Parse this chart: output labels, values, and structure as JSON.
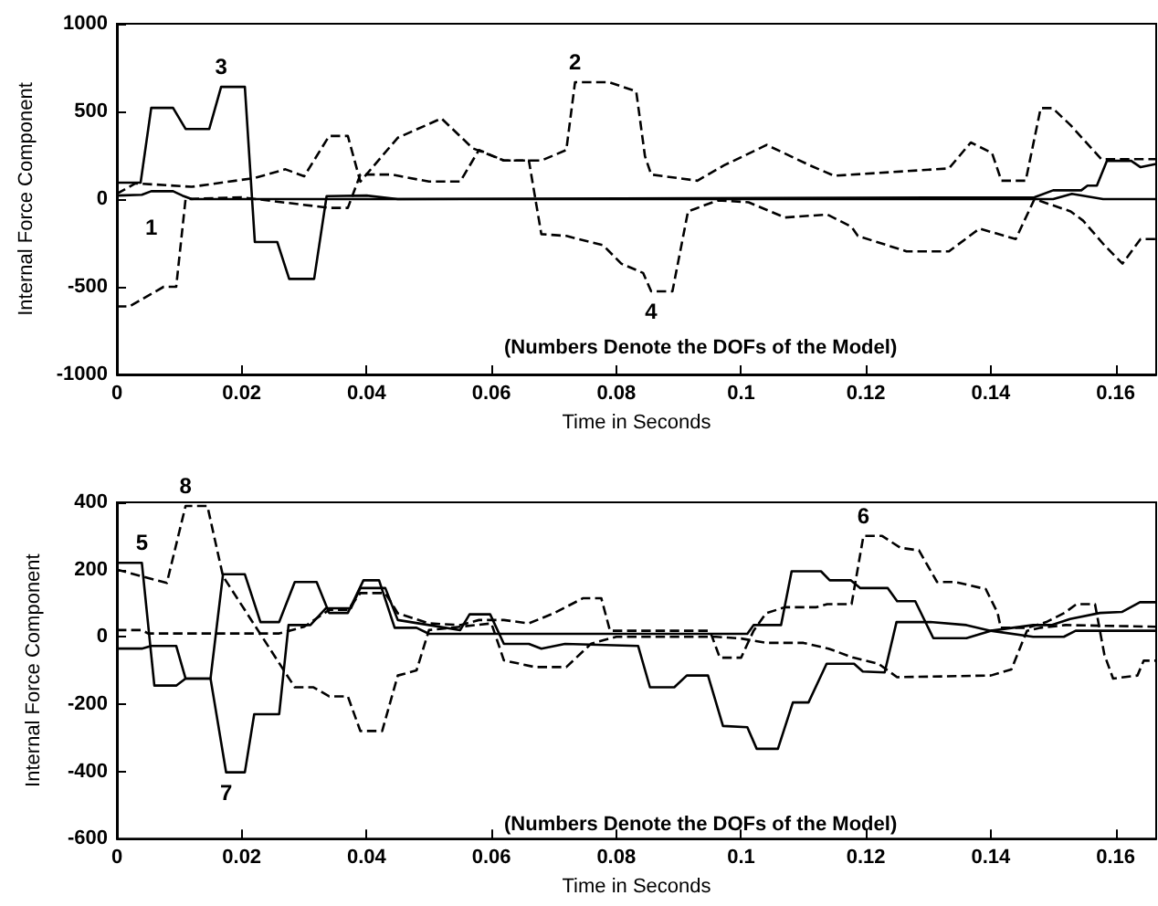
{
  "chart_data": [
    {
      "type": "line",
      "xlabel": "Time in Seconds",
      "ylabel": "Internal Force Component",
      "annotations": [
        "(Numbers Denote the DOFs of the Model)"
      ],
      "xlim": [
        0,
        0.1665
      ],
      "xticks": [
        0,
        0.02,
        0.04,
        0.06,
        0.08,
        0.1,
        0.12,
        0.14,
        0.16
      ],
      "ylim": [
        -1000,
        1000
      ],
      "yticks": [
        -1000,
        -500,
        0,
        500,
        1000
      ],
      "grid": false,
      "legend": false,
      "series": [
        {
          "name": "1",
          "color": "#000000",
          "line_style": "solid",
          "x": [
            0,
            0.004,
            0.0055,
            0.009,
            0.0105,
            0.012,
            0.15,
            0.153,
            0.158,
            0.1665
          ],
          "values": [
            20,
            25,
            45,
            45,
            20,
            0,
            0,
            30,
            0,
            0
          ]
        },
        {
          "name": "2",
          "color": "#000000",
          "line_style": "dashed",
          "x": [
            0,
            0.002,
            0.0075,
            0.0095,
            0.011,
            0.02,
            0.034,
            0.037,
            0.039,
            0.044,
            0.05,
            0.055,
            0.058,
            0.062,
            0.068,
            0.072,
            0.0734,
            0.0788,
            0.0832,
            0.0846,
            0.0856,
            0.093,
            0.0973,
            0.1041,
            0.111,
            0.1149,
            0.1333,
            0.1368,
            0.1402,
            0.1417,
            0.1456,
            0.148,
            0.1499,
            0.1528,
            0.1577,
            0.1665
          ],
          "values": [
            -612,
            -612,
            -500,
            -500,
            0,
            10,
            -50,
            -50,
            140,
            140,
            100,
            100,
            280,
            220,
            220,
            280,
            667,
            667,
            614,
            245,
            140,
            105,
            193,
            309,
            193,
            133,
            175,
            323,
            263,
            105,
            105,
            519,
            519,
            421,
            228,
            228
          ]
        },
        {
          "name": "3",
          "color": "#000000",
          "line_style": "solid",
          "x": [
            0,
            0.0038,
            0.0055,
            0.009,
            0.011,
            0.0148,
            0.0167,
            0.0205,
            0.0221,
            0.0257,
            0.0276,
            0.0316,
            0.0336,
            0.04,
            0.045,
            0.147,
            0.15,
            0.1545,
            0.1555,
            0.157,
            0.1586,
            0.1625,
            0.164,
            0.1665
          ],
          "values": [
            94,
            94,
            520,
            520,
            400,
            400,
            640,
            640,
            -245,
            -245,
            -455,
            -455,
            17,
            20,
            0,
            10,
            50,
            50,
            77,
            77,
            218,
            218,
            182,
            200
          ]
        },
        {
          "name": "4",
          "color": "#000000",
          "line_style": "dashed",
          "x": [
            0,
            0.003,
            0.012,
            0.022,
            0.027,
            0.03,
            0.034,
            0.037,
            0.039,
            0.045,
            0.052,
            0.057,
            0.062,
            0.066,
            0.068,
            0.072,
            0.0779,
            0.0808,
            0.0843,
            0.0856,
            0.089,
            0.0915,
            0.0963,
            0.1012,
            0.107,
            0.1138,
            0.1177,
            0.1187,
            0.1265,
            0.1333,
            0.1382,
            0.144,
            0.147,
            0.1528,
            0.1548,
            0.1582,
            0.1611,
            0.164,
            0.1665
          ],
          "values": [
            30,
            90,
            70,
            120,
            170,
            130,
            360,
            360,
            100,
            350,
            460,
            290,
            220,
            220,
            -200,
            -210,
            -263,
            -368,
            -421,
            -526,
            -526,
            -70,
            -7,
            -18,
            -105,
            -88,
            -158,
            -210,
            -298,
            -298,
            -168,
            -228,
            0,
            -70,
            -123,
            -263,
            -368,
            -228,
            -228
          ]
        }
      ]
    },
    {
      "type": "line",
      "xlabel": "Time in Seconds",
      "ylabel": "Internal Force Component",
      "annotations": [
        "(Numbers Denote the DOFs of the Model)"
      ],
      "xlim": [
        0,
        0.1665
      ],
      "xticks": [
        0,
        0.02,
        0.04,
        0.06,
        0.08,
        0.1,
        0.12,
        0.14,
        0.16
      ],
      "ylim": [
        -600,
        400
      ],
      "yticks": [
        -600,
        -400,
        -200,
        0,
        200,
        400
      ],
      "grid": false,
      "legend": false,
      "series": [
        {
          "name": "5",
          "color": "#000000",
          "line_style": "solid",
          "x": [
            0,
            0.004,
            0.006,
            0.0095,
            0.011,
            0.015,
            0.017,
            0.0205,
            0.023,
            0.026,
            0.0285,
            0.032,
            0.034,
            0.037,
            0.0395,
            0.042,
            0.0445,
            0.048,
            0.05,
            0.101,
            0.102,
            0.1064,
            0.1081,
            0.1128,
            0.1142,
            0.1176,
            0.1191,
            0.1235,
            0.125,
            0.1279,
            0.1308,
            0.1361,
            0.14,
            0.1468,
            0.1497,
            0.1527,
            0.1575,
            0.161,
            0.1639,
            0.1665
          ],
          "values": [
            220,
            220,
            -145,
            -145,
            -124,
            -124,
            186,
            186,
            44,
            44,
            163,
            163,
            71,
            71,
            168,
            168,
            27,
            27,
            9,
            9,
            35,
            35,
            195,
            195,
            168,
            168,
            145,
            145,
            106,
            106,
            -4,
            -4,
            18,
            35,
            35,
            53,
            71,
            74,
            103,
            103
          ]
        },
        {
          "name": "6",
          "color": "#000000",
          "line_style": "dashed",
          "x": [
            0,
            0.004,
            0.005,
            0.026,
            0.028,
            0.03,
            0.034,
            0.037,
            0.039,
            0.043,
            0.045,
            0.05,
            0.055,
            0.058,
            0.062,
            0.066,
            0.07,
            0.0747,
            0.0776,
            0.079,
            0.095,
            0.0966,
            0.1,
            0.102,
            0.104,
            0.107,
            0.112,
            0.1138,
            0.1177,
            0.1196,
            0.1226,
            0.1255,
            0.1285,
            0.1314,
            0.1343,
            0.1392,
            0.1411,
            0.1416,
            0.1459,
            0.1489,
            0.1518,
            0.1537,
            0.1567,
            0.1582,
            0.1596,
            0.1635,
            0.1645,
            0.1665
          ],
          "values": [
            20,
            20,
            10,
            10,
            20,
            30,
            80,
            80,
            130,
            130,
            70,
            40,
            35,
            50,
            50,
            40,
            70,
            115,
            115,
            18,
            18,
            -62,
            -62,
            18,
            70,
            88,
            88,
            97,
            97,
            300,
            300,
            265,
            257,
            163,
            163,
            142,
            71,
            27,
            27,
            44,
            71,
            97,
            97,
            -53,
            -124,
            -115,
            -71,
            -71
          ]
        },
        {
          "name": "7",
          "color": "#000000",
          "line_style": "solid",
          "x": [
            0,
            0.004,
            0.0055,
            0.0095,
            0.011,
            0.015,
            0.0175,
            0.0205,
            0.022,
            0.026,
            0.0275,
            0.031,
            0.0335,
            0.0375,
            0.039,
            0.043,
            0.045,
            0.05,
            0.055,
            0.0565,
            0.0598,
            0.062,
            0.066,
            0.068,
            0.0718,
            0.0835,
            0.0854,
            0.0893,
            0.0913,
            0.0947,
            0.0971,
            0.101,
            0.1025,
            0.1059,
            0.1083,
            0.1108,
            0.1137,
            0.1181,
            0.1195,
            0.123,
            0.1249,
            0.1303,
            0.1361,
            0.14,
            0.1468,
            0.1517,
            0.1536,
            0.1665
          ],
          "values": [
            -35,
            -35,
            -27,
            -27,
            -124,
            -124,
            -403,
            -403,
            -230,
            -230,
            35,
            35,
            85,
            85,
            145,
            145,
            50,
            35,
            20,
            67,
            67,
            -21,
            -21,
            -35,
            -21,
            -27,
            -150,
            -150,
            -115,
            -115,
            -265,
            -269,
            -333,
            -333,
            -195,
            -195,
            -80,
            -80,
            -103,
            -106,
            44,
            44,
            35,
            18,
            0,
            0,
            18,
            18
          ]
        },
        {
          "name": "8",
          "color": "#000000",
          "line_style": "dashed",
          "x": [
            0,
            0.004,
            0.008,
            0.011,
            0.0145,
            0.017,
            0.0285,
            0.0315,
            0.034,
            0.037,
            0.039,
            0.0425,
            0.045,
            0.048,
            0.05,
            0.055,
            0.06,
            0.062,
            0.067,
            0.072,
            0.076,
            0.08,
            0.096,
            0.1,
            0.104,
            0.11,
            0.114,
            0.118,
            0.122,
            0.125,
            0.14,
            0.1433,
            0.1458,
            0.148,
            0.152,
            0.1665
          ],
          "values": [
            200,
            180,
            160,
            389,
            389,
            180,
            -150,
            -150,
            -177,
            -177,
            -280,
            -280,
            -115,
            -100,
            20,
            30,
            40,
            -70,
            -90,
            -90,
            -20,
            0,
            0,
            -5,
            -18,
            -18,
            -35,
            -62,
            -80,
            -120,
            -115,
            -97,
            18,
            27,
            35,
            30
          ]
        }
      ]
    }
  ]
}
